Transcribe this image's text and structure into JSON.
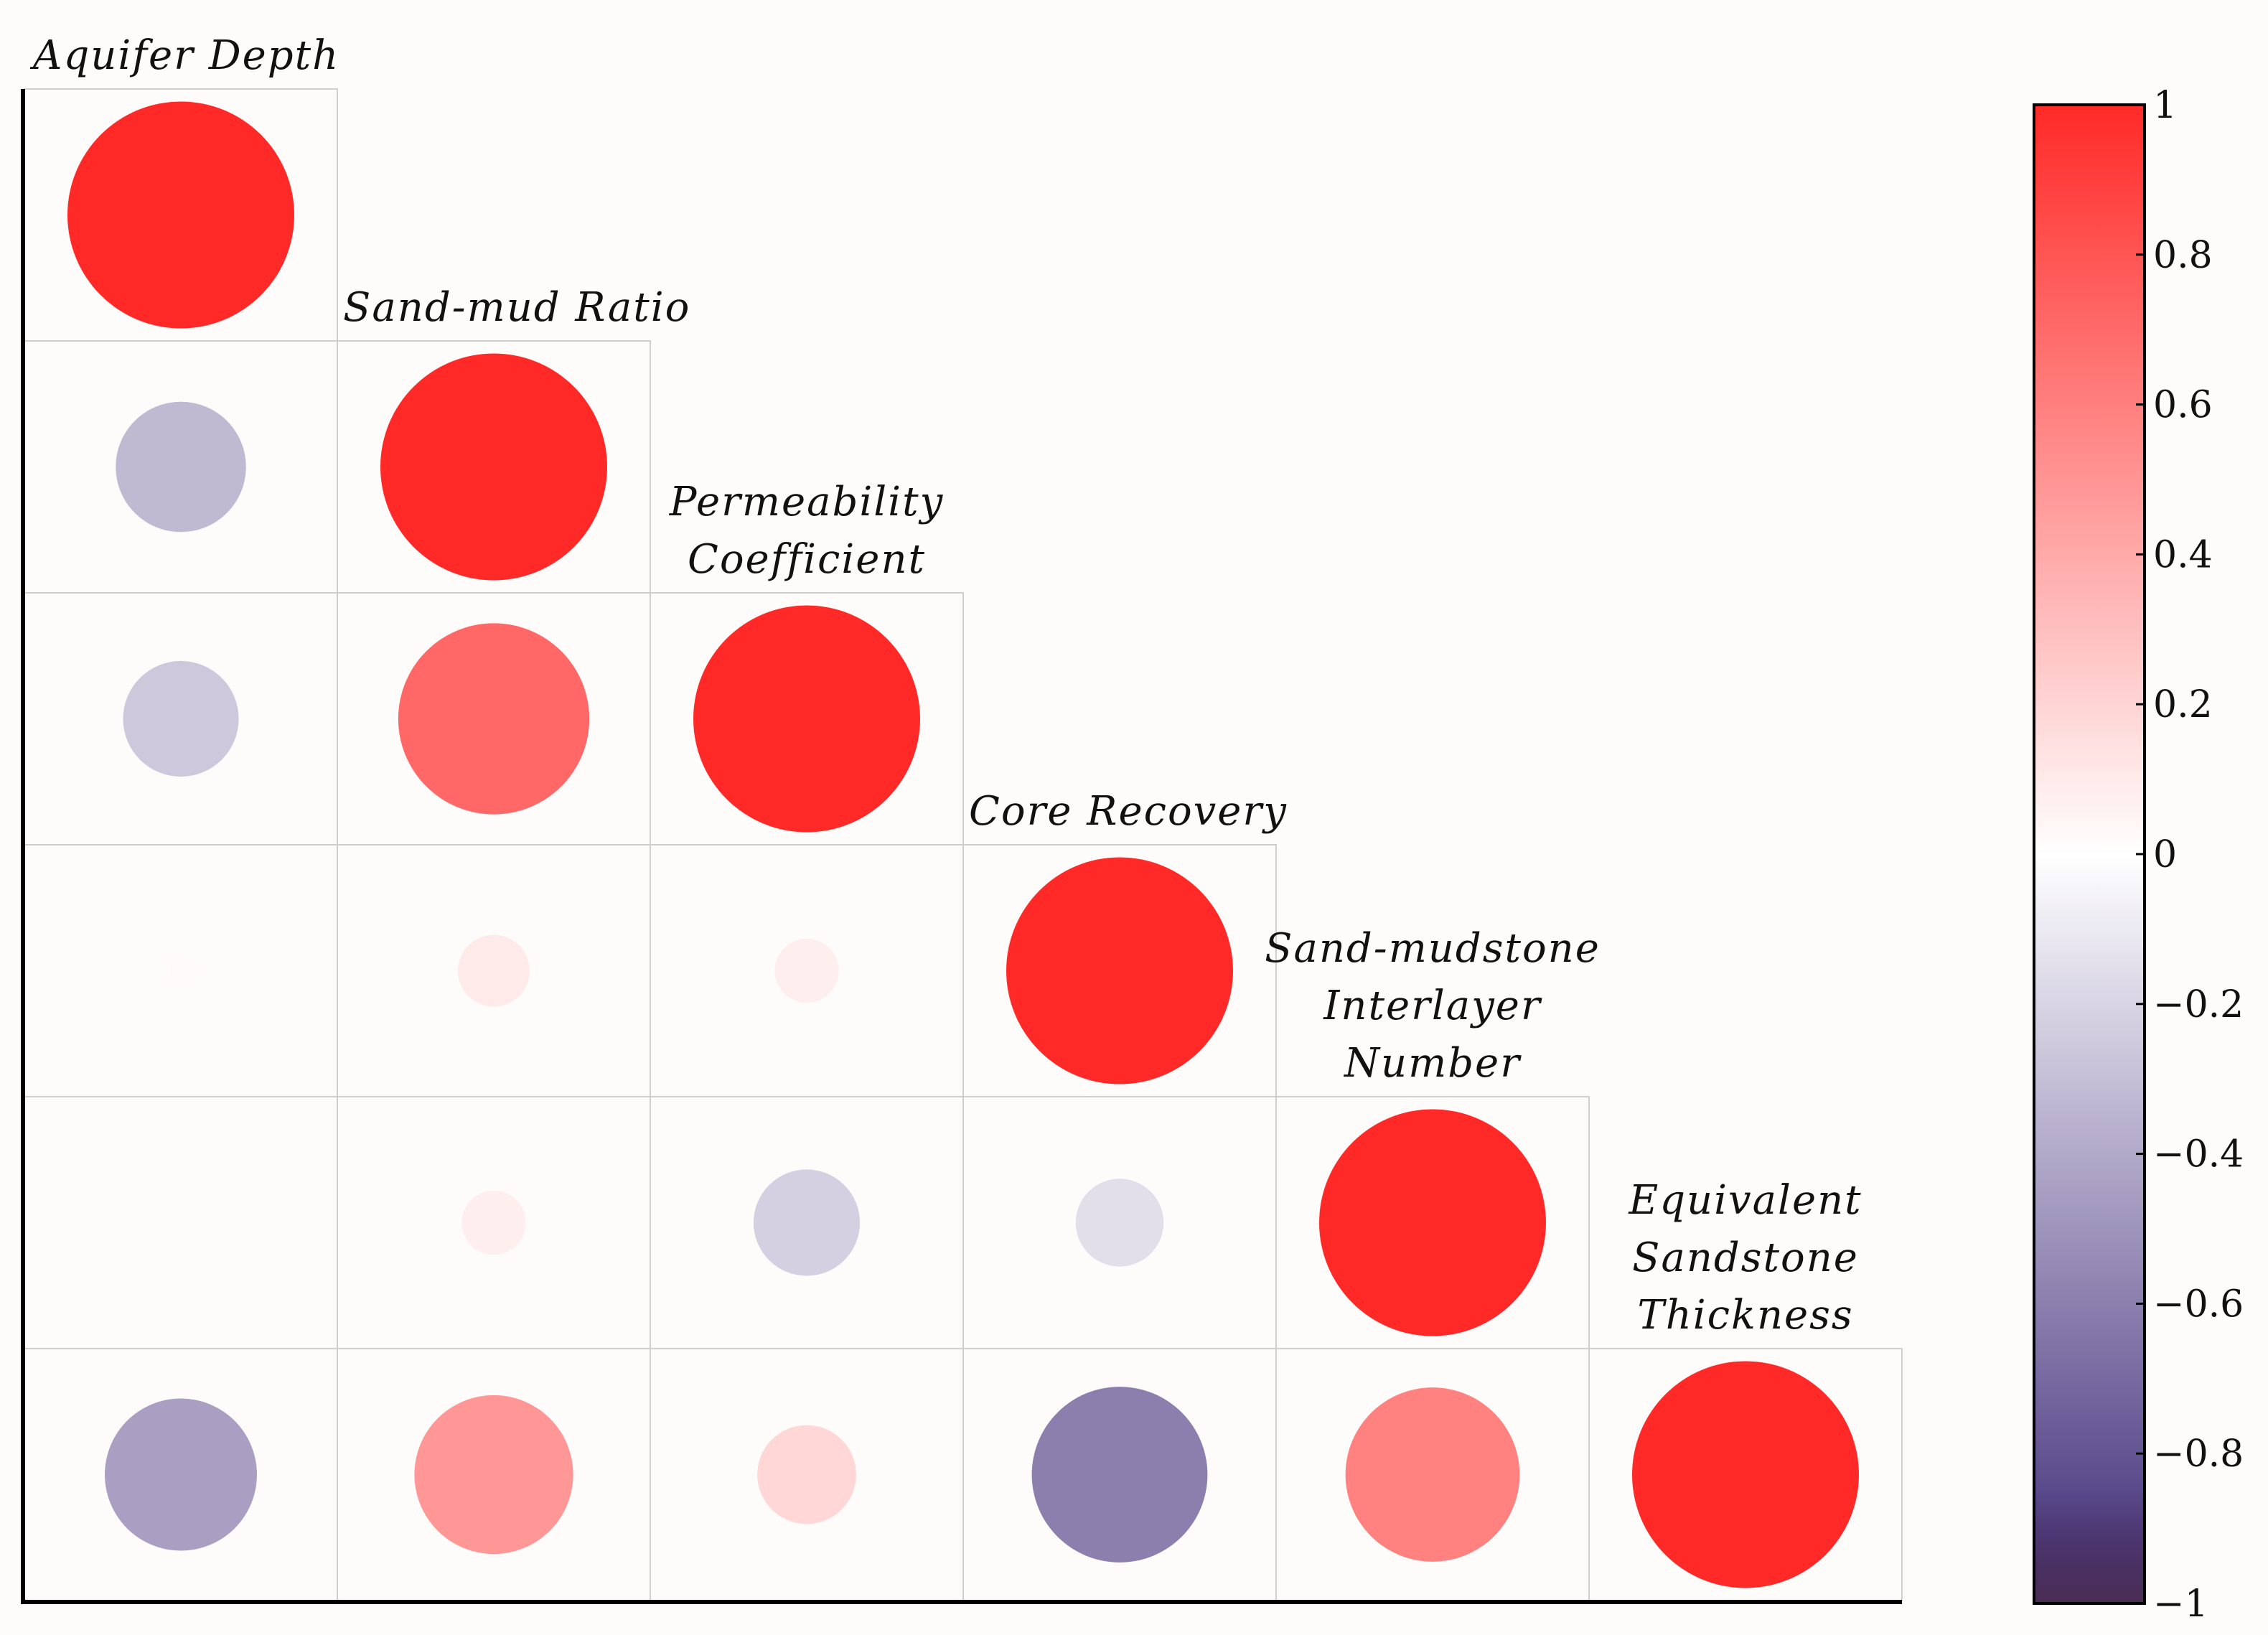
{
  "chart_data": {
    "type": "heatmap",
    "subtype": "correlation-matrix-lower-triangle-circles",
    "variables": [
      [
        "Aquifer Depth"
      ],
      [
        "Sand-mud Ratio"
      ],
      [
        "Permeability",
        "Coefficient"
      ],
      [
        "Core Recovery"
      ],
      [
        "Sand-mudstone",
        "Interlayer",
        "Number"
      ],
      [
        "Equivalent",
        "Sandstone",
        "Thickness"
      ]
    ],
    "matrix": [
      [
        1.0
      ],
      [
        -0.33,
        1.0
      ],
      [
        -0.26,
        0.71,
        1.0
      ],
      [
        0.02,
        0.1,
        0.08,
        1.0
      ],
      [
        0.0,
        0.08,
        -0.22,
        -0.15,
        1.0
      ],
      [
        -0.45,
        0.49,
        0.19,
        -0.6,
        0.59,
        1.0
      ]
    ],
    "colorbar": {
      "range": [
        -1,
        1
      ],
      "ticks": [
        "1",
        "0.8",
        "0.6",
        "0.4",
        "0.2",
        "0",
        "−0.2",
        "−0.4",
        "−0.6",
        "−0.8",
        "−1"
      ],
      "tick_values": [
        1,
        0.8,
        0.6,
        0.4,
        0.2,
        0,
        -0.2,
        -0.4,
        -0.6,
        -0.8,
        -1
      ],
      "positive_color": "#ff2a28",
      "zero_color": "#ffffff",
      "negative_color": "#3d2a78",
      "end_color": "#4a2d54"
    }
  }
}
